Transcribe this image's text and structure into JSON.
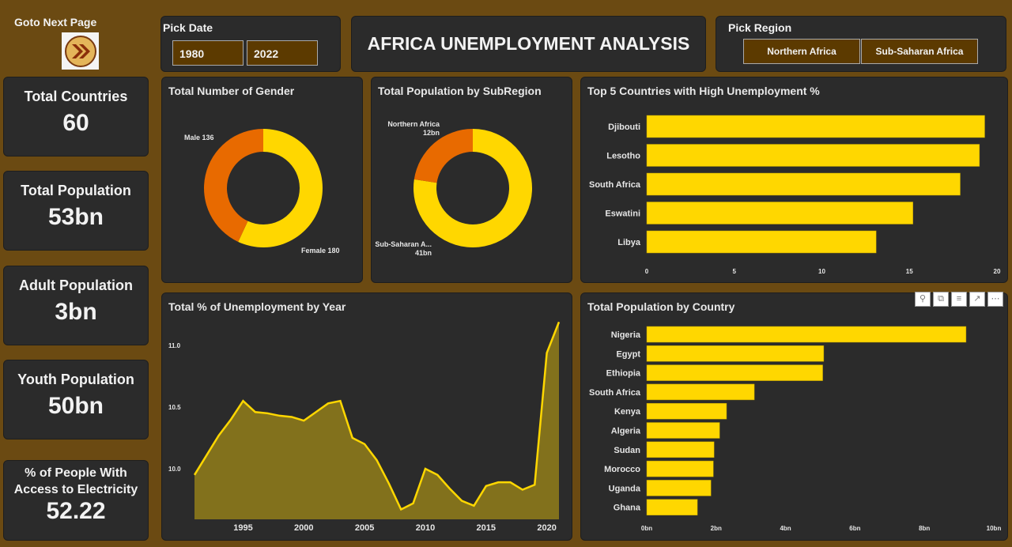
{
  "nav": {
    "label": "Goto Next Page",
    "icon": "double-chevron-right-icon"
  },
  "date_filter": {
    "label": "Pick Date",
    "start": "1980",
    "end": "2022"
  },
  "title": "AFRICA UNEMPLOYMENT ANALYSIS",
  "region_filter": {
    "label": "Pick Region",
    "options": [
      "Northern Africa",
      "Sub-Saharan Africa"
    ]
  },
  "kpis": [
    {
      "label": "Total Countries",
      "value": "60"
    },
    {
      "label": "Total Population",
      "value": "53bn"
    },
    {
      "label": "Adult Population",
      "value": "3bn"
    },
    {
      "label": "Youth Population",
      "value": "50bn"
    },
    {
      "label": "% of People With Access to Electricity",
      "value": "52.22"
    }
  ],
  "colors": {
    "background": "#6b4a12",
    "panel": "#2b2b2b",
    "yellow": "#ffd700",
    "orange": "#e86a00",
    "area": "#82711c"
  },
  "visual_header_icons": [
    "pin-icon",
    "copy-icon",
    "filter-icon",
    "focus-mode-icon",
    "more-options-icon"
  ],
  "chart_data": [
    {
      "type": "pie",
      "title": "Total Number of Gender",
      "donut": true,
      "slices": [
        {
          "label": "Female",
          "value": 180,
          "display": "Female 180"
        },
        {
          "label": "Male",
          "value": 136,
          "display": "Male 136"
        }
      ]
    },
    {
      "type": "pie",
      "title": "Total Population by SubRegion",
      "donut": true,
      "slices": [
        {
          "label": "Sub-Saharan A...",
          "value": 41,
          "display": "41bn"
        },
        {
          "label": "Northern Africa",
          "value": 12,
          "display": "12bn"
        }
      ]
    },
    {
      "type": "bar",
      "orientation": "horizontal",
      "title": "Top 5 Countries with High Unemployment %",
      "categories": [
        "Djibouti",
        "Lesotho",
        "South Africa",
        "Eswatini",
        "Libya"
      ],
      "values": [
        19.3,
        19.0,
        17.9,
        15.2,
        13.1
      ],
      "xlim": [
        0,
        20
      ],
      "ticks": [
        "0",
        "5",
        "10",
        "15",
        "20"
      ]
    },
    {
      "type": "area",
      "title": "Total % of Unemployment by Year",
      "x": [
        1991,
        1992,
        1993,
        1994,
        1995,
        1996,
        1997,
        1998,
        1999,
        2000,
        2001,
        2002,
        2003,
        2004,
        2005,
        2006,
        2007,
        2008,
        2009,
        2010,
        2011,
        2012,
        2013,
        2014,
        2015,
        2016,
        2017,
        2018,
        2019,
        2020,
        2021
      ],
      "values": [
        9.95,
        10.11,
        10.27,
        10.4,
        10.55,
        10.46,
        10.45,
        10.43,
        10.42,
        10.39,
        10.46,
        10.53,
        10.55,
        10.25,
        10.2,
        10.07,
        9.88,
        9.67,
        9.72,
        10.0,
        9.95,
        9.84,
        9.74,
        9.7,
        9.86,
        9.89,
        9.89,
        9.83,
        9.87,
        10.94,
        11.19
      ],
      "ylim": [
        9.6,
        11.25
      ],
      "yticks": [
        "10.0",
        "10.5",
        "11.0"
      ],
      "xticks": [
        "1995",
        "2000",
        "2005",
        "2010",
        "2015",
        "2020"
      ]
    },
    {
      "type": "bar",
      "orientation": "horizontal",
      "title": "Total Population by Country",
      "categories": [
        "Nigeria",
        "Egypt",
        "Ethiopia",
        "South Africa",
        "Kenya",
        "Algeria",
        "Sudan",
        "Morocco",
        "Uganda",
        "Ghana"
      ],
      "values": [
        9.2,
        5.1,
        5.07,
        3.1,
        2.3,
        2.1,
        1.94,
        1.92,
        1.85,
        1.46
      ],
      "xlim": [
        0,
        10
      ],
      "ticks": [
        "0bn",
        "2bn",
        "4bn",
        "6bn",
        "8bn",
        "10bn"
      ]
    }
  ]
}
